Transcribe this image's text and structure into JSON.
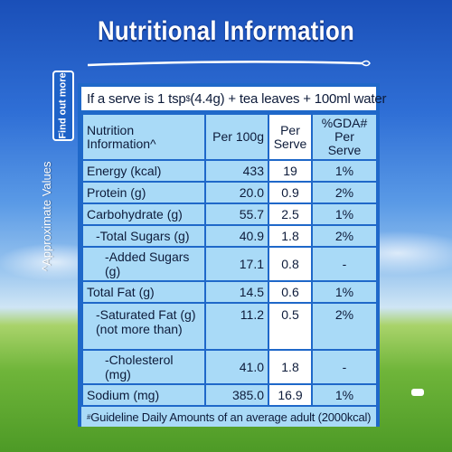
{
  "title": "Nutritional Information",
  "side_tab": "Find out more",
  "side_label": "^Approximate Values",
  "serve": {
    "prefix": "If a serve is 1 tsp",
    "sup": "$",
    "suffix": " (4.4g) + tea leaves + 100ml water"
  },
  "headers": {
    "col1": "Nutrition Information^",
    "col2": "Per 100g",
    "col3": "Per Serve",
    "col4": "%GDA# Per Serve"
  },
  "rows": [
    {
      "label": "Energy (kcal)",
      "per100": "433",
      "perServe": "19",
      "gda": "1%"
    },
    {
      "label": "Protein (g)",
      "per100": "20.0",
      "perServe": "0.9",
      "gda": "2%"
    },
    {
      "label": "Carbohydrate (g)",
      "per100": "55.7",
      "perServe": "2.5",
      "gda": "1%"
    },
    {
      "label": "-Total Sugars (g)",
      "per100": "40.9",
      "perServe": "1.8",
      "gda": "2%"
    },
    {
      "label": "-Added Sugars (g)",
      "per100": "17.1",
      "perServe": "0.8",
      "gda": "-"
    },
    {
      "label": "Total Fat (g)",
      "per100": "14.5",
      "perServe": "0.6",
      "gda": "1%"
    },
    {
      "label": "-Saturated Fat (g) (not more than)",
      "per100": "11.2",
      "perServe": "0.5",
      "gda": "2%"
    },
    {
      "label": "-Cholesterol (mg)",
      "per100": "41.0",
      "perServe": "1.8",
      "gda": "-"
    },
    {
      "label": "Sodium (mg)",
      "per100": "385.0",
      "perServe": "16.9",
      "gda": "1%"
    }
  ],
  "footnote": {
    "sup": "#",
    "text": "Guideline Daily Amounts of an average adult (2000kcal)"
  }
}
